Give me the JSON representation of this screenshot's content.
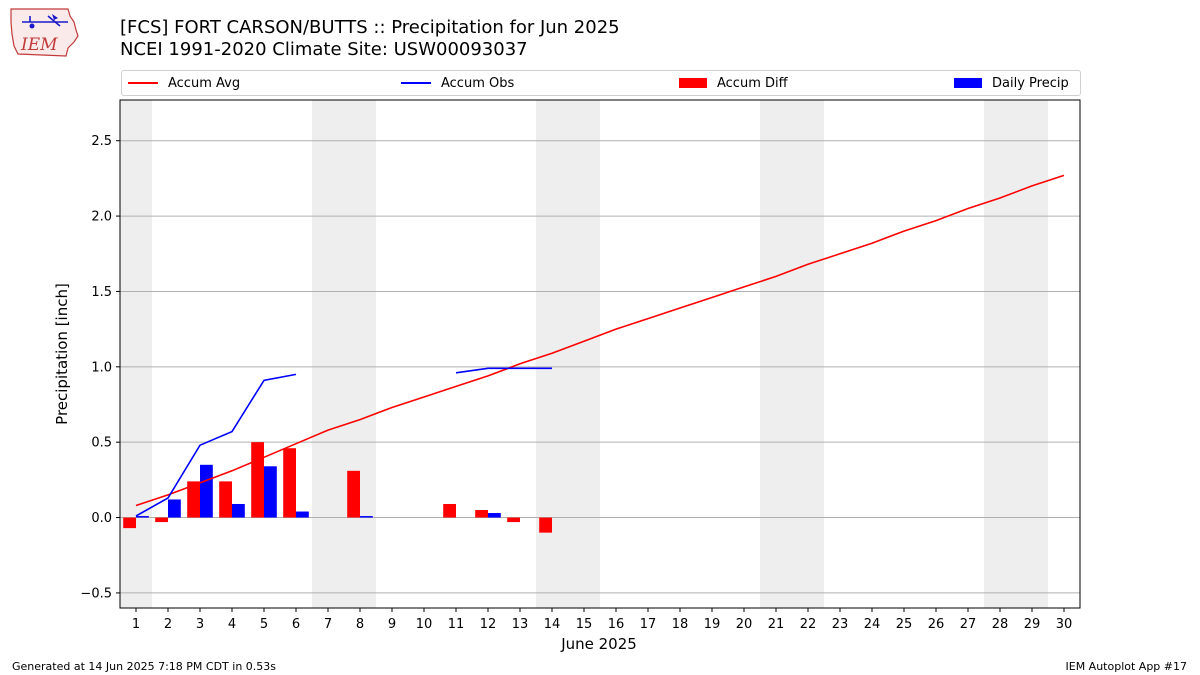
{
  "header": {
    "title_line1": "[FCS] FORT CARSON/BUTTS :: Precipitation for Jun 2025",
    "title_line2": "NCEI 1991-2020 Climate Site: USW00093037"
  },
  "logo": {
    "text": "IEM"
  },
  "footer": {
    "left": "Generated at 14 Jun 2025 7:18 PM CDT in 0.53s",
    "right": "IEM Autoplot App #17"
  },
  "legend": [
    {
      "label": "Accum Avg",
      "kind": "line",
      "color": "#ff0000"
    },
    {
      "label": "Accum Obs",
      "kind": "line",
      "color": "#0000ff"
    },
    {
      "label": "Accum Diff",
      "kind": "bar",
      "color": "#ff0000"
    },
    {
      "label": "Daily Precip",
      "kind": "bar",
      "color": "#0000ff"
    }
  ],
  "chart_data": {
    "type": "bar",
    "xlabel": "June 2025",
    "ylabel": "Precipitation [inch]",
    "ylim": [
      -0.6,
      2.77
    ],
    "xlim": [
      0.5,
      30.5
    ],
    "grid": "horizontal",
    "legend_position": "top",
    "yticks": [
      -0.5,
      0.0,
      0.5,
      1.0,
      1.5,
      2.0,
      2.5
    ],
    "ytick_labels": [
      "−0.5",
      "0.0",
      "0.5",
      "1.0",
      "1.5",
      "2.0",
      "2.5"
    ],
    "x": [
      1,
      2,
      3,
      4,
      5,
      6,
      7,
      8,
      9,
      10,
      11,
      12,
      13,
      14,
      15,
      16,
      17,
      18,
      19,
      20,
      21,
      22,
      23,
      24,
      25,
      26,
      27,
      28,
      29,
      30
    ],
    "xtick_labels": [
      "1",
      "2",
      "3",
      "4",
      "5",
      "6",
      "7",
      "8",
      "9",
      "10",
      "11",
      "12",
      "13",
      "14",
      "15",
      "16",
      "17",
      "18",
      "19",
      "20",
      "21",
      "22",
      "23",
      "24",
      "25",
      "26",
      "27",
      "28",
      "29",
      "30"
    ],
    "weekend_bands": [
      [
        1
      ],
      [
        7,
        8
      ],
      [
        14,
        15
      ],
      [
        21,
        22
      ],
      [
        28,
        29
      ]
    ],
    "series": [
      {
        "name": "Accum Avg",
        "kind": "line",
        "color": "#ff0000",
        "values": [
          0.08,
          0.15,
          0.23,
          0.31,
          0.4,
          0.49,
          0.58,
          0.65,
          0.73,
          0.8,
          0.87,
          0.94,
          1.02,
          1.09,
          1.17,
          1.25,
          1.32,
          1.39,
          1.46,
          1.53,
          1.6,
          1.68,
          1.75,
          1.82,
          1.9,
          1.97,
          2.05,
          2.12,
          2.2,
          2.27
        ]
      },
      {
        "name": "Accum Obs",
        "kind": "line",
        "color": "#0000ff",
        "values": [
          0.01,
          0.13,
          0.48,
          0.57,
          0.91,
          0.95,
          null,
          null,
          null,
          null,
          0.96,
          0.99,
          0.99,
          0.99,
          null,
          null,
          null,
          null,
          null,
          null,
          null,
          null,
          null,
          null,
          null,
          null,
          null,
          null,
          null,
          null
        ]
      },
      {
        "name": "Accum Diff",
        "kind": "bar",
        "color": "#ff0000",
        "values": [
          -0.07,
          -0.03,
          0.24,
          0.24,
          0.5,
          0.46,
          null,
          0.31,
          null,
          null,
          0.09,
          0.05,
          -0.03,
          -0.1,
          null,
          null,
          null,
          null,
          null,
          null,
          null,
          null,
          null,
          null,
          null,
          null,
          null,
          null,
          null,
          null
        ]
      },
      {
        "name": "Daily Precip",
        "kind": "bar",
        "color": "#0000ff",
        "values": [
          0.01,
          0.12,
          0.35,
          0.09,
          0.34,
          0.04,
          null,
          0.01,
          null,
          null,
          null,
          0.03,
          null,
          null,
          null,
          null,
          null,
          null,
          null,
          null,
          null,
          null,
          null,
          null,
          null,
          null,
          null,
          null,
          null,
          null
        ]
      }
    ]
  }
}
